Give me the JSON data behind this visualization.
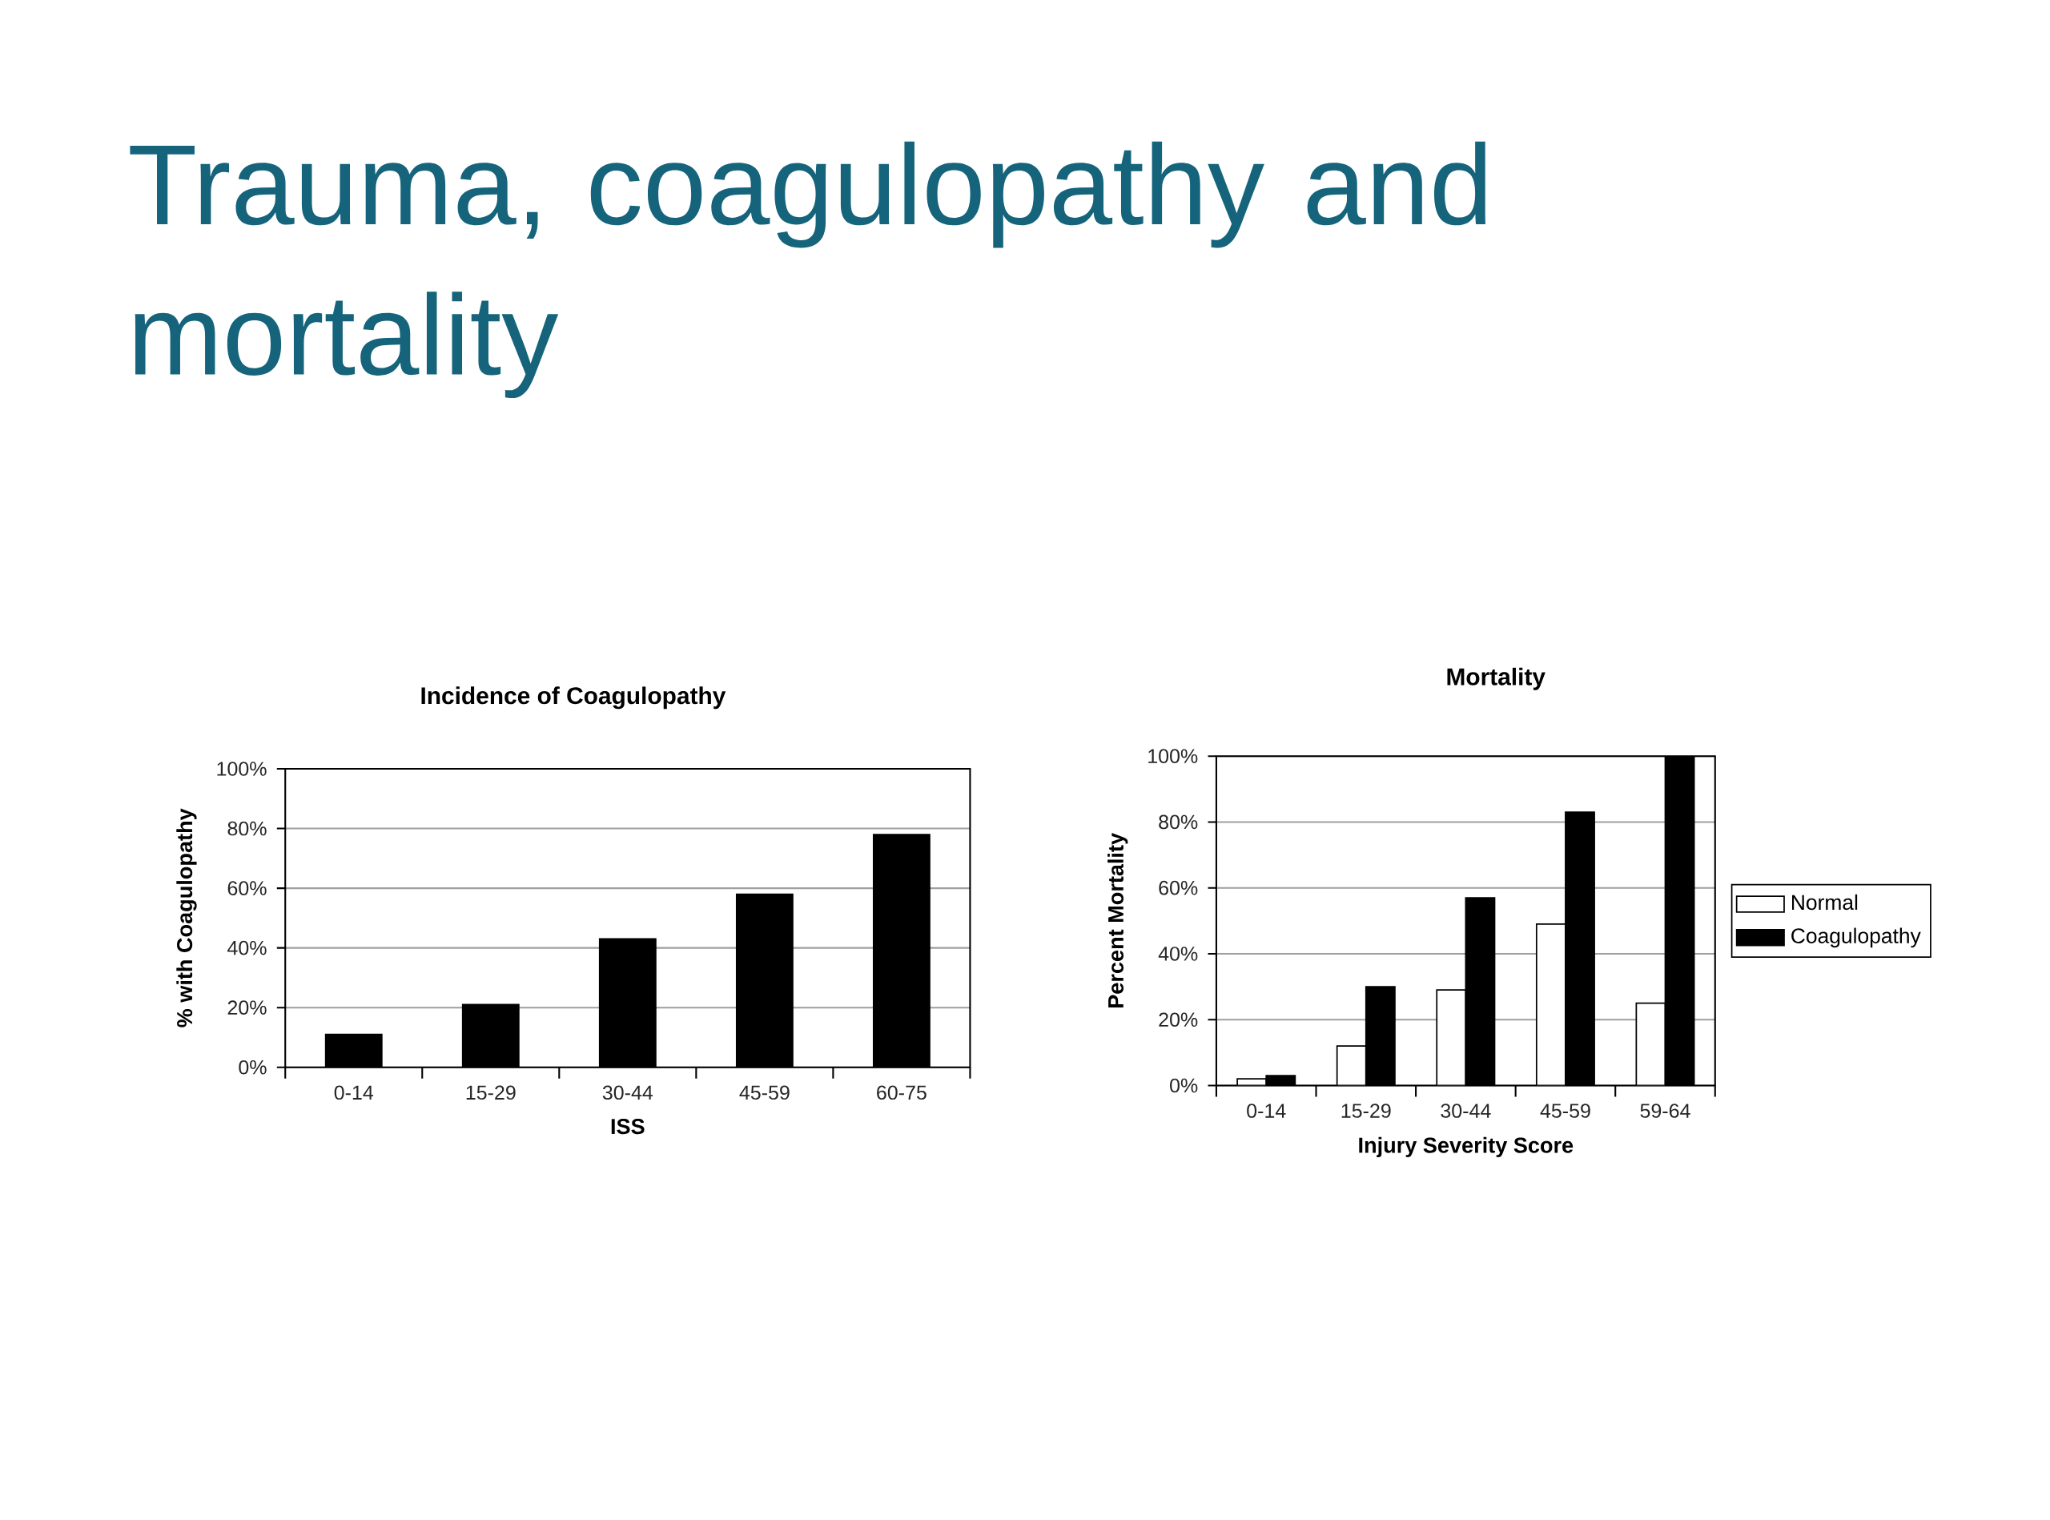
{
  "chart_data": [
    {
      "type": "bar",
      "title": "Incidence of Coagulopathy",
      "xlabel": "ISS",
      "ylabel": "% with Coagulopathy",
      "annotations": [
        "Trauma, coagulopathy and mortality"
      ],
      "categories": [
        "0-14",
        "15-29",
        "30-44",
        "45-59",
        "60-75"
      ],
      "values": [
        11,
        21,
        43,
        58,
        78
      ],
      "color": "#000000",
      "ylim": [
        0,
        100
      ],
      "yticks": [
        {
          "value": 0,
          "label": "0%"
        },
        {
          "value": 20,
          "label": "20%"
        },
        {
          "value": 40,
          "label": "40%"
        },
        {
          "value": 60,
          "label": "60%"
        },
        {
          "value": 80,
          "label": "80%"
        },
        {
          "value": 100,
          "label": "100%"
        }
      ],
      "grid": "y"
    },
    {
      "type": "bar",
      "title": "Mortality",
      "xlabel": "Injury Severity Score",
      "ylabel": "Percent Mortality",
      "categories": [
        "0-14",
        "15-29",
        "30-44",
        "45-59",
        "59-64"
      ],
      "series": [
        {
          "name": "Normal",
          "color": "#ffffff",
          "values": [
            2,
            12,
            29,
            49,
            25
          ]
        },
        {
          "name": "Coagulopathy",
          "color": "#000000",
          "values": [
            3,
            30,
            57,
            83,
            100
          ]
        }
      ],
      "ylim": [
        0,
        100
      ],
      "yticks": [
        {
          "value": 0,
          "label": "0%"
        },
        {
          "value": 20,
          "label": "20%"
        },
        {
          "value": 40,
          "label": "40%"
        },
        {
          "value": 60,
          "label": "60%"
        },
        {
          "value": 80,
          "label": "80%"
        },
        {
          "value": 100,
          "label": "100%"
        }
      ],
      "grid": "y",
      "legend": "right"
    }
  ]
}
